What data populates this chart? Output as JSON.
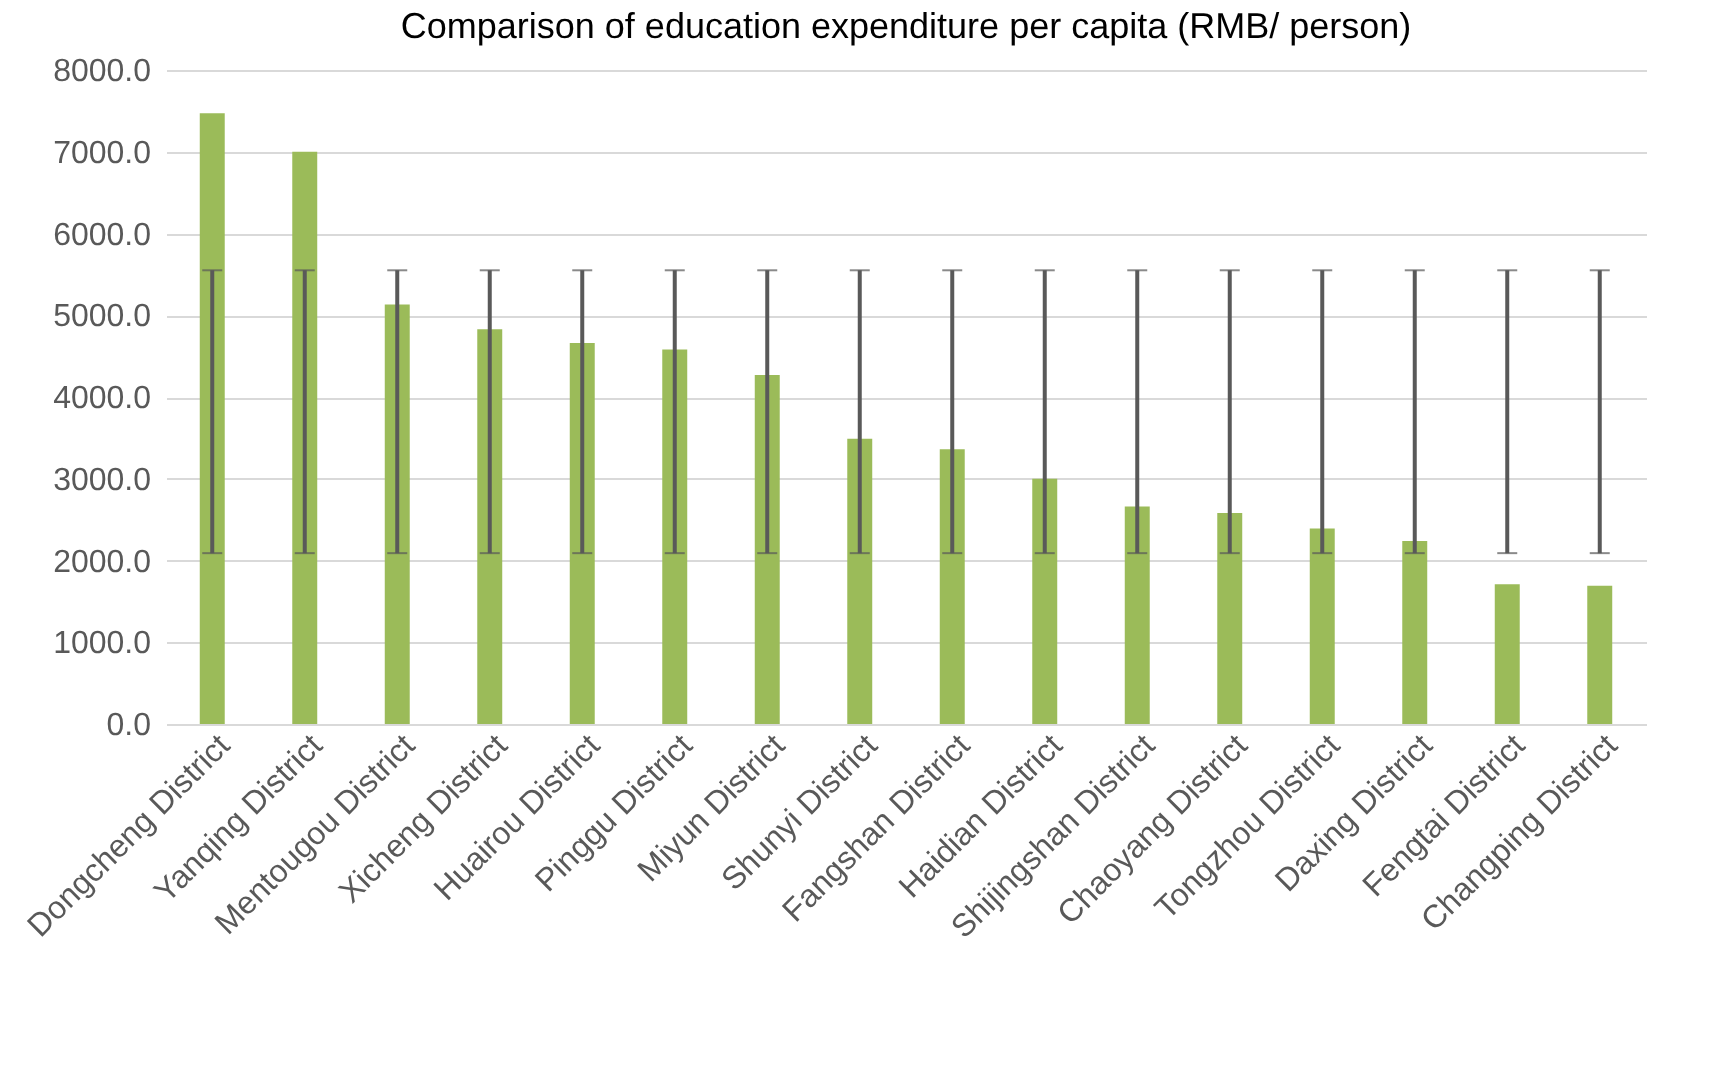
{
  "chart_data": {
    "type": "bar",
    "title": "Comparison of education expenditure per capita (RMB/ person)",
    "categories": [
      "Dongcheng District",
      "Yanqing District",
      "Mentougou District",
      "Xicheng District",
      "Huairou District",
      "Pinggu District",
      "Miyun District",
      "Shunyi District",
      "Fangshan District",
      "Haidian District",
      "Shijingshan District",
      "Chaoyang District",
      "Tongzhou District",
      "Daxing District",
      "Fengtai District",
      "Changping District"
    ],
    "values": [
      7470,
      7000,
      5130,
      4830,
      4660,
      4580,
      4270,
      3490,
      3360,
      3000,
      2660,
      2580,
      2390,
      2240,
      1710,
      1690
    ],
    "color": "#9bbb59",
    "errors": [
      [
        2090,
        5550
      ],
      [
        2090,
        5550
      ],
      [
        2090,
        5550
      ],
      [
        2090,
        5550
      ],
      [
        2090,
        5550
      ],
      [
        2090,
        5550
      ],
      [
        2090,
        5550
      ],
      [
        2090,
        5550
      ],
      [
        2090,
        5550
      ],
      [
        2090,
        5550
      ],
      [
        2090,
        5550
      ],
      [
        2090,
        5550
      ],
      [
        2090,
        5550
      ],
      [
        2090,
        5550
      ],
      [
        2090,
        5550
      ],
      [
        2090,
        5550
      ]
    ],
    "ylim": [
      0,
      8000
    ],
    "yticks": [
      {
        "value": 0,
        "label": "0.0"
      },
      {
        "value": 1000,
        "label": "1000.0"
      },
      {
        "value": 2000,
        "label": "2000.0"
      },
      {
        "value": 3000,
        "label": "3000.0"
      },
      {
        "value": 4000,
        "label": "4000.0"
      },
      {
        "value": 5000,
        "label": "5000.0"
      },
      {
        "value": 6000,
        "label": "6000.0"
      },
      {
        "value": 7000,
        "label": "7000.0"
      },
      {
        "value": 8000,
        "label": "8000.0"
      }
    ],
    "grid": "y"
  }
}
